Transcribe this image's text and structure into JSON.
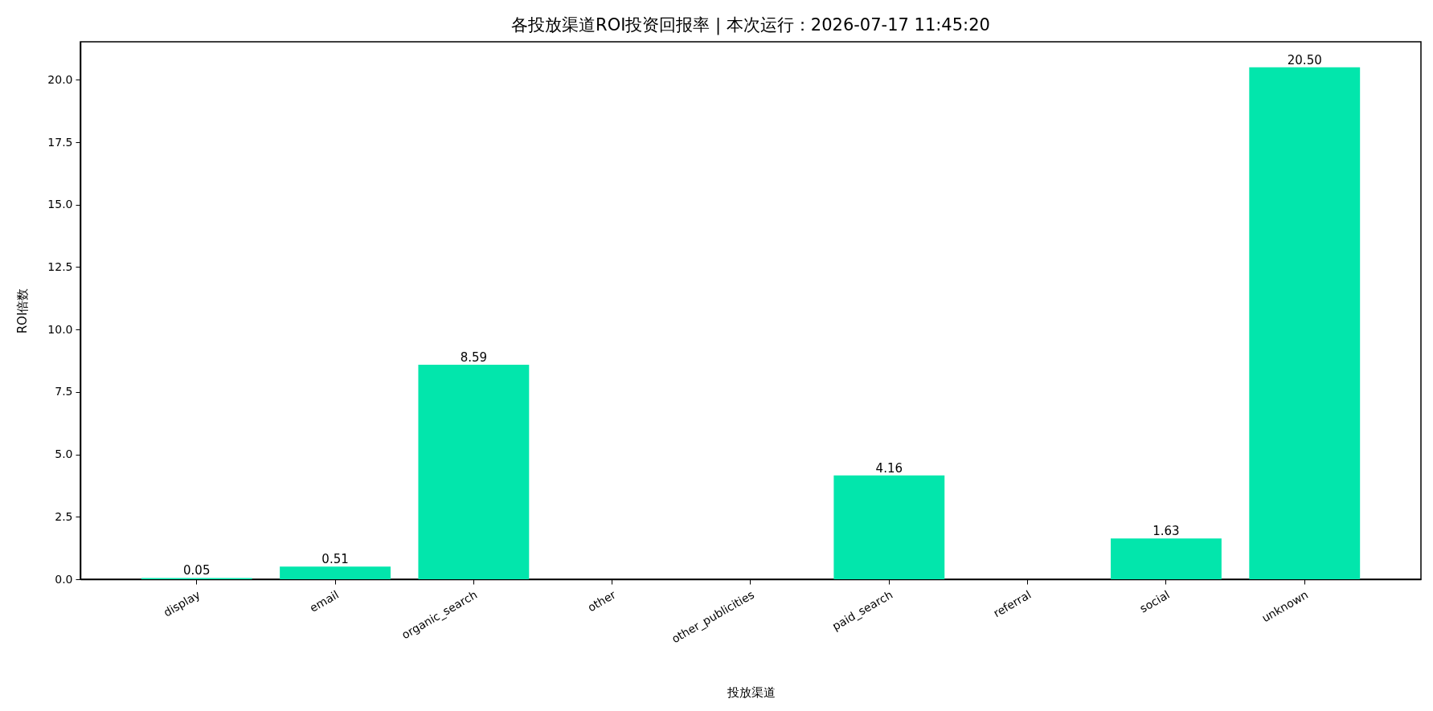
{
  "chart_data": {
    "type": "bar",
    "title": "各投放渠道ROI投资回报率 | 本次运行：2026-07-17 11:45:20",
    "xlabel": "投放渠道",
    "ylabel": "ROI倍数",
    "categories": [
      "display",
      "email",
      "organic_search",
      "other",
      "other_publicities",
      "paid_search",
      "referral",
      "social",
      "unknown"
    ],
    "values": [
      0.05,
      0.51,
      8.59,
      null,
      null,
      4.16,
      null,
      1.63,
      20.5
    ],
    "value_labels": [
      "0.05",
      "0.51",
      "8.59",
      null,
      null,
      "4.16",
      null,
      "1.63",
      "20.50"
    ],
    "color": "#02e6ac",
    "ylim": [
      0,
      21.525
    ],
    "yticks": [
      {
        "value": 0,
        "label": "0.0"
      },
      {
        "value": 2.5,
        "label": "2.5"
      },
      {
        "value": 5,
        "label": "5.0"
      },
      {
        "value": 7.5,
        "label": "7.5"
      },
      {
        "value": 10,
        "label": "10.0"
      },
      {
        "value": 12.5,
        "label": "12.5"
      },
      {
        "value": 15,
        "label": "15.0"
      },
      {
        "value": 17.5,
        "label": "17.5"
      },
      {
        "value": 20,
        "label": "20.0"
      }
    ]
  }
}
